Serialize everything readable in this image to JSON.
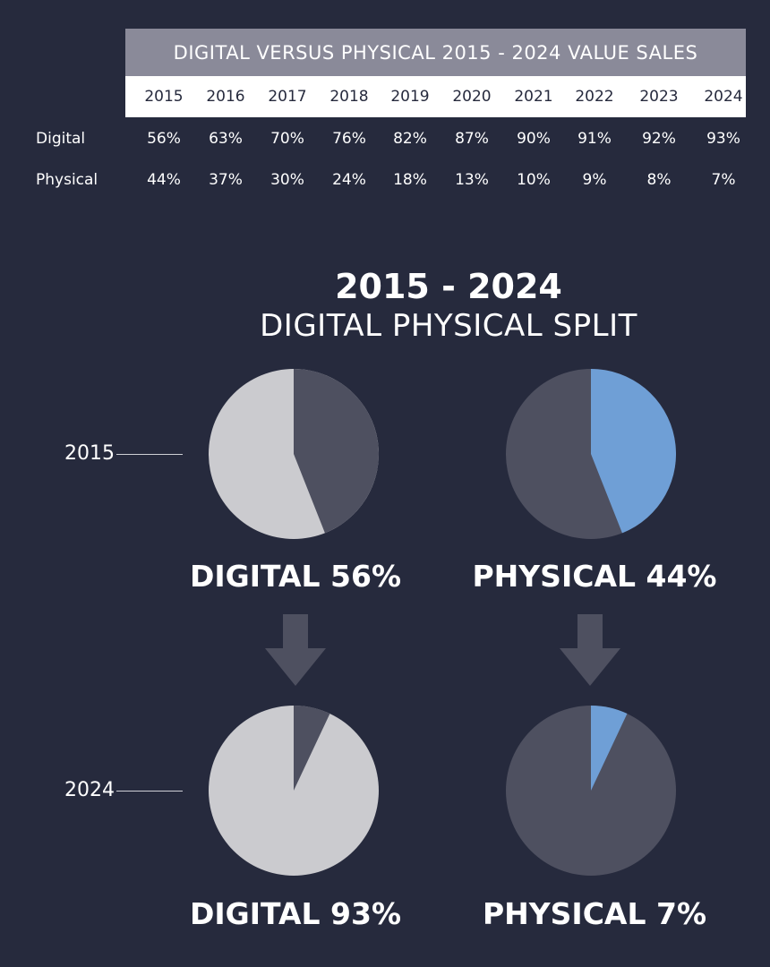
{
  "table": {
    "title": "DIGITAL VERSUS PHYSICAL 2015 - 2024 VALUE SALES",
    "years": [
      "2015",
      "2016",
      "2017",
      "2018",
      "2019",
      "2020",
      "2021",
      "2022",
      "2023",
      "2024"
    ],
    "rows": [
      {
        "label": "Digital",
        "values": [
          "56%",
          "63%",
          "70%",
          "76%",
          "82%",
          "87%",
          "90%",
          "91%",
          "92%",
          "93%"
        ]
      },
      {
        "label": "Physical",
        "values": [
          "44%",
          "37%",
          "30%",
          "24%",
          "18%",
          "13%",
          "10%",
          "9%",
          "8%",
          "7%"
        ]
      }
    ]
  },
  "split": {
    "title": "2015 - 2024",
    "subtitle": "DIGITAL PHYSICAL SPLIT",
    "year_top": "2015",
    "year_bottom": "2024",
    "captions": {
      "digital_2015": "DIGITAL 56%",
      "physical_2015": "PHYSICAL 44%",
      "digital_2024": "DIGITAL 93%",
      "physical_2024": "PHYSICAL 7%"
    }
  },
  "colors": {
    "background": "#262a3d",
    "digital": "#cbcbcf",
    "physical": "#6f9fd6",
    "other": "#4e5060",
    "arrow": "#4e5060"
  },
  "chart_data": [
    {
      "type": "table",
      "title": "DIGITAL VERSUS PHYSICAL 2015 - 2024 VALUE SALES",
      "columns": [
        "2015",
        "2016",
        "2017",
        "2018",
        "2019",
        "2020",
        "2021",
        "2022",
        "2023",
        "2024"
      ],
      "series": [
        {
          "name": "Digital",
          "values": [
            56,
            63,
            70,
            76,
            82,
            87,
            90,
            91,
            92,
            93
          ]
        },
        {
          "name": "Physical",
          "values": [
            44,
            37,
            30,
            24,
            18,
            13,
            10,
            9,
            8,
            7
          ]
        }
      ]
    },
    {
      "type": "pie",
      "categories": [
        "Digital",
        "Physical"
      ],
      "values": [
        56,
        44
      ],
      "label": "2015"
    },
    {
      "type": "pie",
      "categories": [
        "Digital",
        "Physical"
      ],
      "values": [
        93,
        7
      ],
      "label": "2024"
    }
  ]
}
